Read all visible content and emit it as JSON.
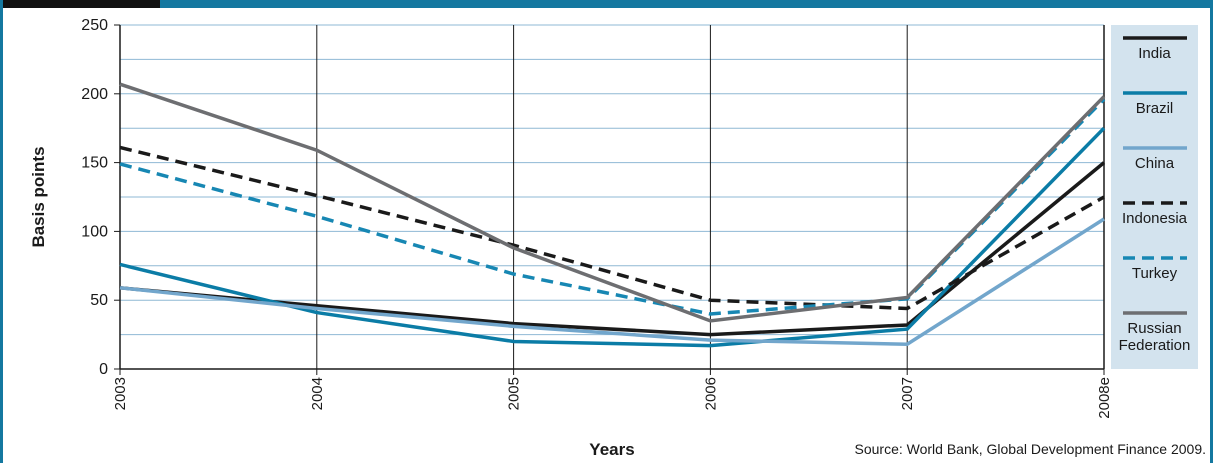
{
  "chart_data": {
    "type": "line",
    "x_label": "Years",
    "y_label": "Basis points",
    "source": "Source: World Bank, Global Development Finance 2009.",
    "categories": [
      "2003",
      "2004",
      "2005",
      "2006",
      "2007",
      "2008e"
    ],
    "ylim": [
      0,
      250
    ],
    "yticks": [
      0,
      50,
      100,
      150,
      200,
      250
    ],
    "minor_grid": [
      25,
      75,
      125,
      175,
      225
    ],
    "grid": true,
    "series": [
      {
        "name": "India",
        "color": "#1a1a1a",
        "dash": false,
        "values": [
          59,
          46,
          33,
          25,
          32,
          150
        ]
      },
      {
        "name": "Brazil",
        "color": "#0b7ca6",
        "dash": false,
        "values": [
          76,
          41,
          20,
          17,
          29,
          175
        ]
      },
      {
        "name": "China",
        "color": "#72a6cc",
        "dash": false,
        "values": [
          59,
          44,
          31,
          21,
          18,
          109
        ]
      },
      {
        "name": "Indonesia",
        "color": "#1a1a1a",
        "dash": true,
        "values": [
          161,
          126,
          90,
          50,
          44,
          125
        ]
      },
      {
        "name": "Turkey",
        "color": "#1787b3",
        "dash": true,
        "values": [
          149,
          111,
          69,
          40,
          51,
          196
        ]
      },
      {
        "name": "Russian Federation",
        "color": "#6d6e71",
        "dash": false,
        "values": [
          207,
          159,
          88,
          35,
          52,
          198
        ]
      }
    ]
  }
}
